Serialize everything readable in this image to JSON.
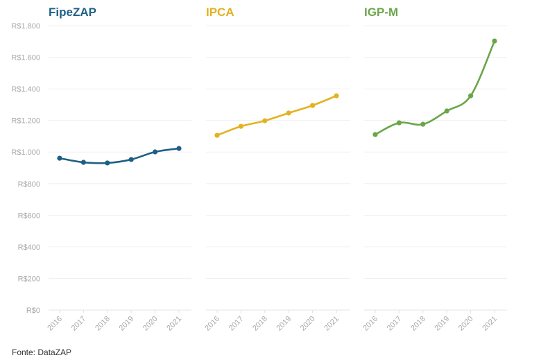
{
  "chart_data": [
    {
      "type": "line",
      "title": "FipeZAP",
      "color": "#1f5f86",
      "x": [
        "2016",
        "2017",
        "2018",
        "2019",
        "2020",
        "2021"
      ],
      "values": [
        961,
        935,
        931,
        953,
        1001,
        1023
      ]
    },
    {
      "type": "line",
      "title": "IPCA",
      "color": "#e3b21f",
      "x": [
        "2016",
        "2017",
        "2018",
        "2019",
        "2020",
        "2021"
      ],
      "values": [
        1106,
        1163,
        1198,
        1247,
        1295,
        1356
      ]
    },
    {
      "type": "line",
      "title": "IGP-M",
      "color": "#6ba54a",
      "x": [
        "2016",
        "2017",
        "2018",
        "2019",
        "2020",
        "2021"
      ],
      "values": [
        1111,
        1185,
        1176,
        1260,
        1356,
        1703
      ]
    }
  ],
  "y_axis": {
    "ylim": [
      0,
      1800
    ],
    "ticks": [
      0,
      200,
      400,
      600,
      800,
      1000,
      1200,
      1400,
      1600,
      1800
    ],
    "tick_labels": [
      "R$0",
      "R$200",
      "R$400",
      "R$600",
      "R$800",
      "R$1.000",
      "R$1.200",
      "R$1.400",
      "R$1.600",
      "R$1.800"
    ],
    "grid": true
  },
  "source": "Fonte: DataZAP"
}
